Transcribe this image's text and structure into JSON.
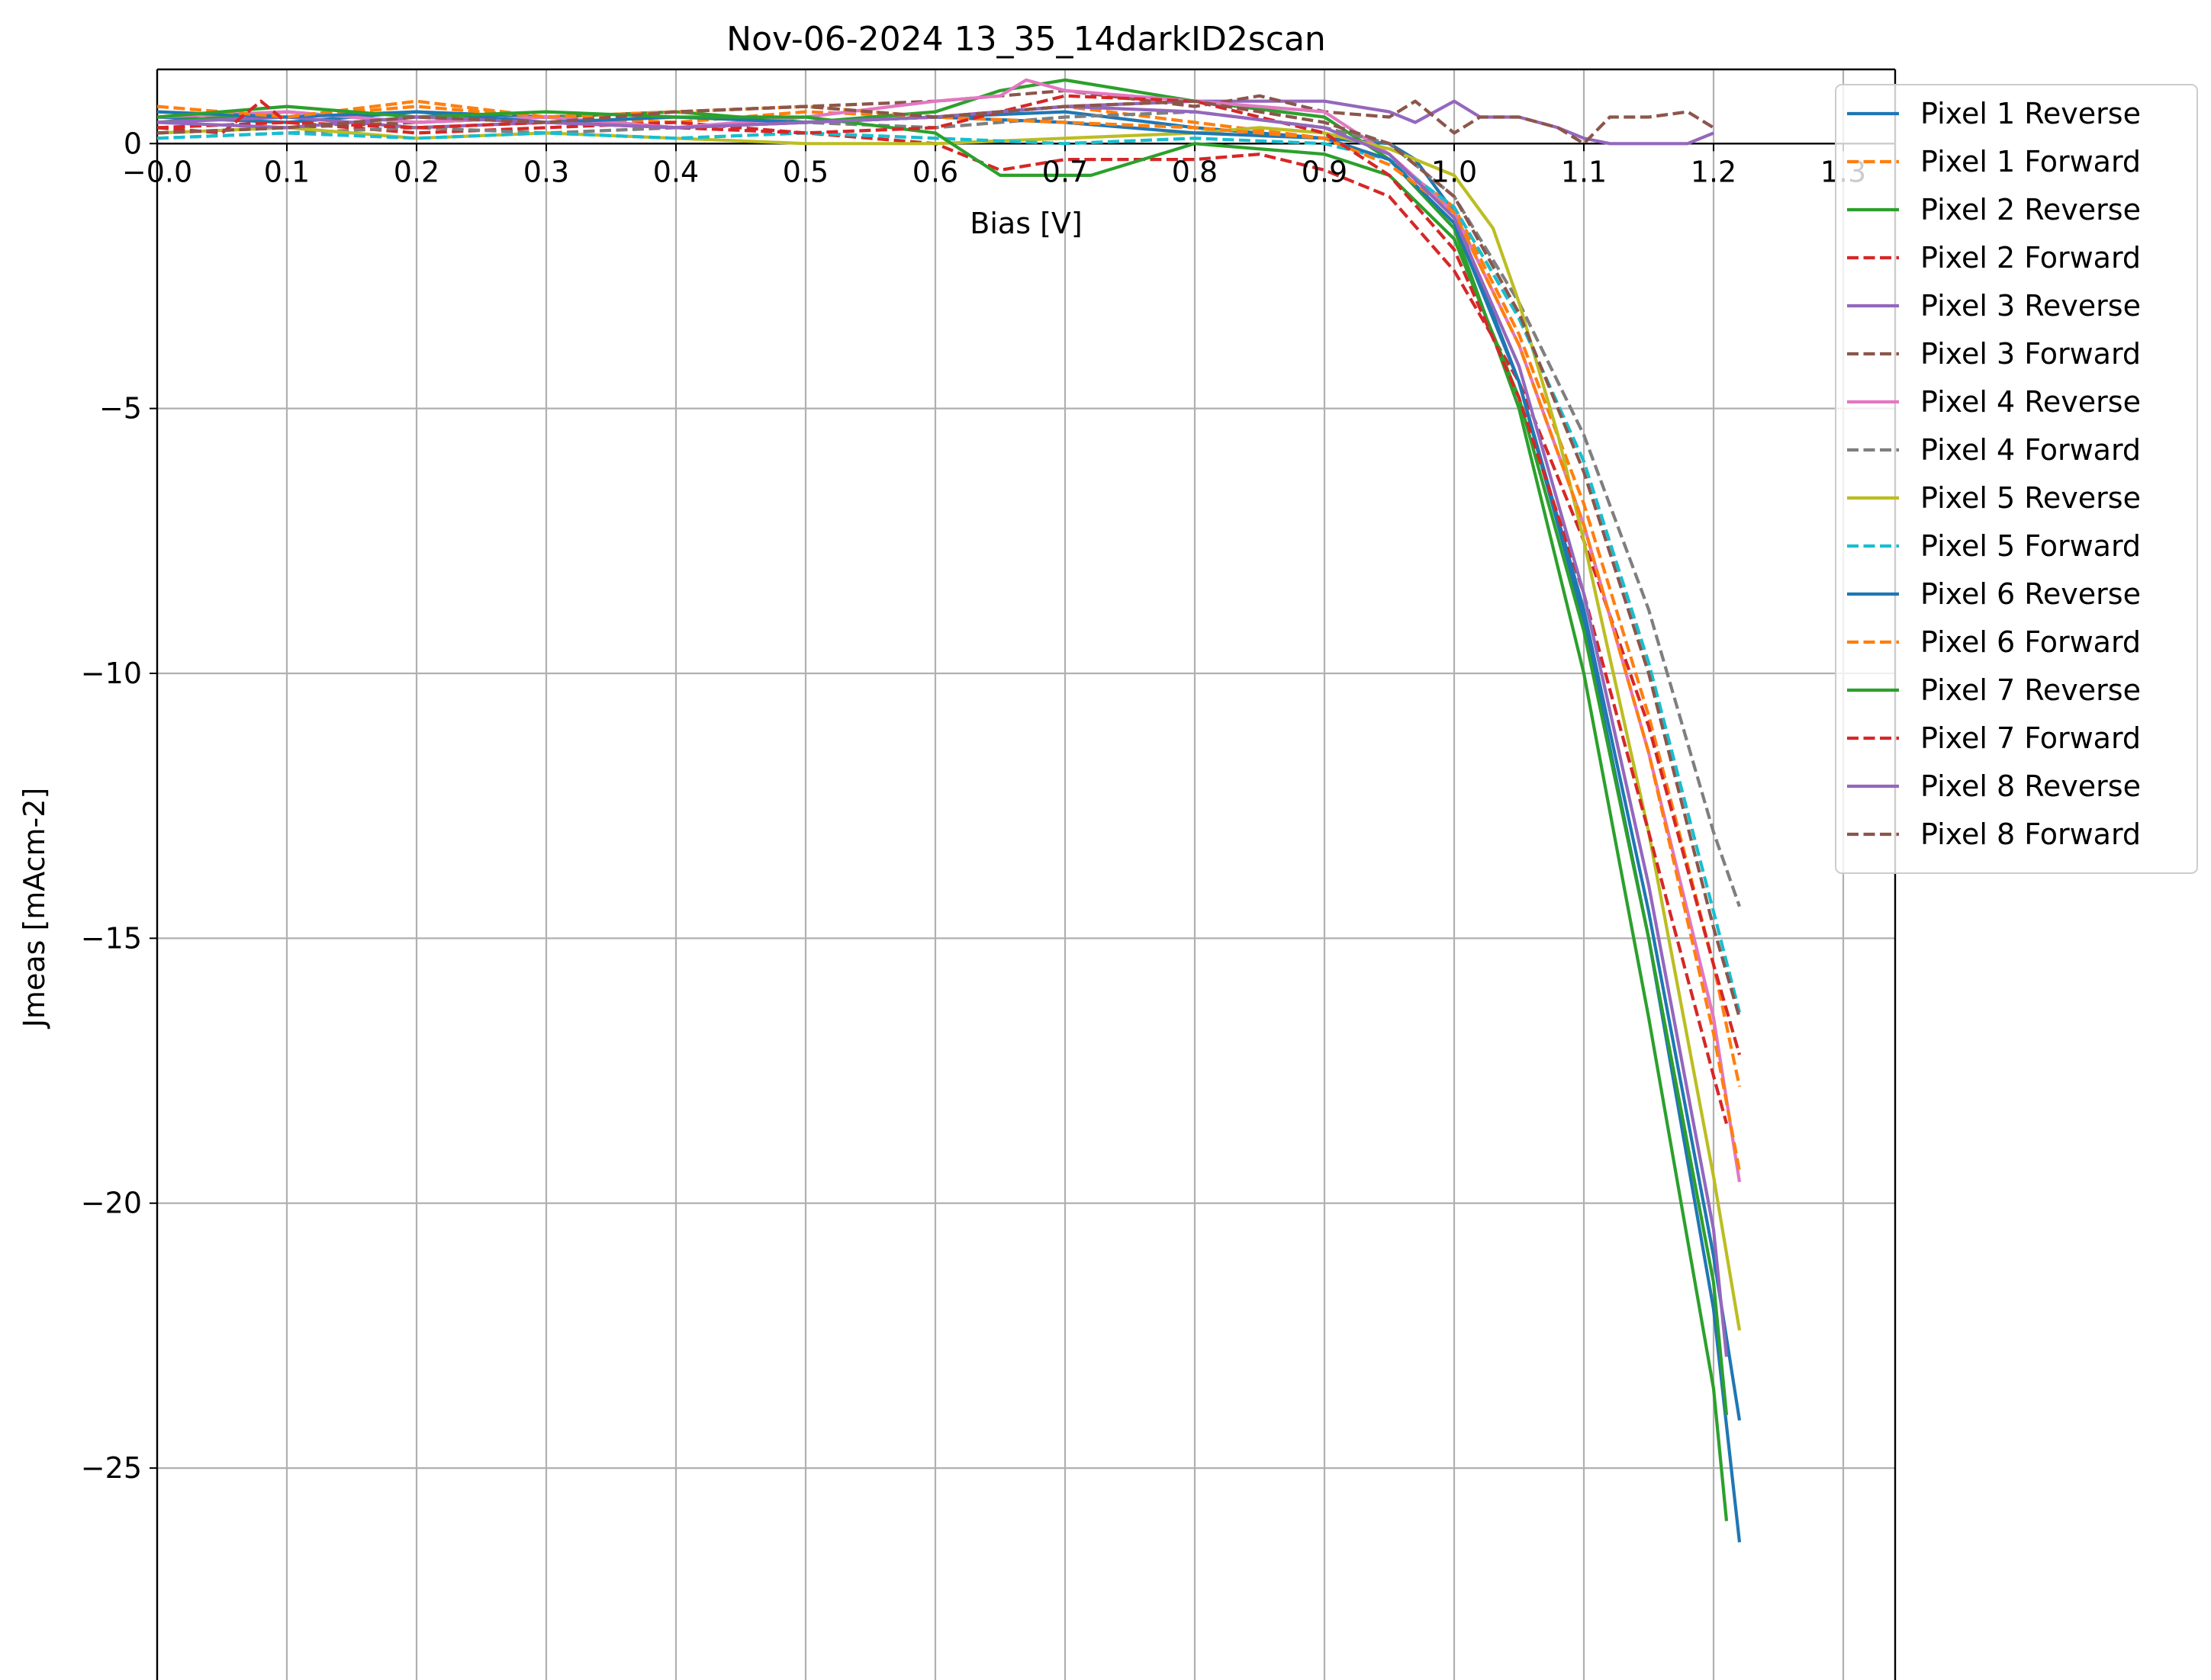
{
  "chart_data": {
    "type": "line",
    "title": "Nov-06-2024 13_35_14darkID2scan",
    "xlabel": "Bias [V]",
    "ylabel": "Jmeas [mAcm-2]",
    "xlim": [
      0.0,
      1.34
    ],
    "ylim": [
      -29.0,
      1.4
    ],
    "x_ticks": [
      0.0,
      0.1,
      0.2,
      0.3,
      0.4,
      0.5,
      0.6,
      0.7,
      0.8,
      0.9,
      1.0,
      1.1,
      1.2,
      1.3
    ],
    "x_tick_labels": [
      "−0.0",
      "0.1",
      "0.2",
      "0.3",
      "0.4",
      "0.5",
      "0.6",
      "0.7",
      "0.8",
      "0.9",
      "1.0",
      "1.1",
      "1.2",
      "1.3"
    ],
    "y_ticks": [
      0,
      -5,
      -10,
      -15,
      -20,
      -25
    ],
    "y_tick_labels": [
      "0",
      "−5",
      "−10",
      "−15",
      "−20",
      "−25"
    ],
    "grid": true,
    "legend_position": "top-right",
    "series": [
      {
        "name": "Pixel 1 Reverse",
        "color": "#1f77b4",
        "dash": false,
        "x": [
          0.0,
          0.1,
          0.2,
          0.3,
          0.4,
          0.5,
          0.6,
          0.7,
          0.8,
          0.9,
          0.95,
          0.97,
          1.0,
          1.05,
          1.1,
          1.15,
          1.2,
          1.22
        ],
        "y": [
          0.5,
          0.4,
          0.6,
          0.5,
          0.3,
          0.4,
          0.5,
          0.6,
          0.3,
          0.1,
          0.0,
          -0.3,
          -1.3,
          -4.5,
          -9.0,
          -15.0,
          -22.0,
          -26.4
        ]
      },
      {
        "name": "Pixel 1 Forward",
        "color": "#ff7f0e",
        "dash": true,
        "x": [
          0.0,
          0.1,
          0.2,
          0.3,
          0.4,
          0.5,
          0.6,
          0.7,
          0.8,
          0.9,
          0.95,
          1.0,
          1.05,
          1.1,
          1.15,
          1.2,
          1.22
        ],
        "y": [
          0.6,
          0.5,
          0.7,
          0.5,
          0.4,
          0.6,
          0.5,
          0.7,
          0.4,
          0.1,
          -0.3,
          -1.2,
          -3.6,
          -6.8,
          -10.8,
          -15.5,
          -17.8
        ]
      },
      {
        "name": "Pixel 2 Reverse",
        "color": "#2ca02c",
        "dash": false,
        "x": [
          0.0,
          0.1,
          0.2,
          0.3,
          0.4,
          0.5,
          0.6,
          0.65,
          0.7,
          0.75,
          0.8,
          0.9,
          0.95,
          1.0,
          1.05,
          1.1,
          1.15,
          1.2,
          1.21
        ],
        "y": [
          0.4,
          0.6,
          0.4,
          0.5,
          0.6,
          0.4,
          0.6,
          1.0,
          1.2,
          1.0,
          0.8,
          0.5,
          -0.3,
          -1.6,
          -5.0,
          -10.0,
          -16.5,
          -23.5,
          -26.0
        ]
      },
      {
        "name": "Pixel 2 Forward",
        "color": "#d62728",
        "dash": true,
        "x": [
          0.0,
          0.1,
          0.2,
          0.3,
          0.4,
          0.5,
          0.6,
          0.65,
          0.7,
          0.75,
          0.8,
          0.85,
          0.9,
          0.95,
          1.0,
          1.05,
          1.1,
          1.15,
          1.2,
          1.22
        ],
        "y": [
          0.3,
          0.4,
          0.2,
          0.3,
          0.4,
          0.2,
          0.0,
          -0.5,
          -0.3,
          -0.3,
          -0.3,
          -0.2,
          -0.5,
          -1.0,
          -2.4,
          -4.5,
          -7.5,
          -11.0,
          -15.5,
          -17.2
        ]
      },
      {
        "name": "Pixel 3 Reverse",
        "color": "#9467bd",
        "dash": false,
        "x": [
          0.0,
          0.1,
          0.2,
          0.3,
          0.4,
          0.5,
          0.6,
          0.7,
          0.8,
          0.9,
          0.95,
          0.97,
          1.0,
          1.02,
          1.05,
          1.08,
          1.1,
          1.12,
          1.15,
          1.18,
          1.2
        ],
        "y": [
          0.4,
          0.5,
          0.3,
          0.4,
          0.3,
          0.4,
          0.5,
          0.7,
          0.8,
          0.8,
          0.6,
          0.4,
          0.8,
          0.5,
          0.5,
          0.3,
          0.1,
          0.0,
          0.0,
          0.0,
          0.2
        ]
      },
      {
        "name": "Pixel 3 Forward",
        "color": "#8c564b",
        "dash": true,
        "x": [
          0.0,
          0.1,
          0.2,
          0.3,
          0.4,
          0.5,
          0.6,
          0.7,
          0.8,
          0.85,
          0.9,
          0.95,
          0.97,
          1.0,
          1.02,
          1.05,
          1.08,
          1.1,
          1.12,
          1.15,
          1.18,
          1.2
        ],
        "y": [
          0.2,
          0.3,
          0.4,
          0.5,
          0.6,
          0.7,
          0.8,
          1.0,
          0.7,
          0.9,
          0.6,
          0.5,
          0.8,
          0.2,
          0.5,
          0.5,
          0.3,
          0.0,
          0.5,
          0.5,
          0.6,
          0.3
        ]
      },
      {
        "name": "Pixel 4 Reverse",
        "color": "#e377c2",
        "dash": false,
        "x": [
          0.0,
          0.1,
          0.2,
          0.3,
          0.4,
          0.5,
          0.6,
          0.65,
          0.67,
          0.7,
          0.8,
          0.9,
          0.95,
          1.0,
          1.05,
          1.1,
          1.15,
          1.2,
          1.22
        ],
        "y": [
          0.5,
          0.6,
          0.4,
          0.5,
          0.3,
          0.5,
          0.8,
          0.9,
          1.2,
          1.0,
          0.8,
          0.6,
          -0.2,
          -1.3,
          -3.8,
          -7.2,
          -11.5,
          -16.5,
          -19.6
        ]
      },
      {
        "name": "Pixel 4 Forward",
        "color": "#7f7f7f",
        "dash": true,
        "x": [
          0.0,
          0.1,
          0.2,
          0.3,
          0.4,
          0.5,
          0.6,
          0.7,
          0.8,
          0.9,
          0.95,
          1.0,
          1.05,
          1.1,
          1.15,
          1.2,
          1.22
        ],
        "y": [
          0.1,
          0.2,
          0.3,
          0.2,
          0.3,
          0.4,
          0.3,
          0.5,
          0.6,
          0.3,
          0.0,
          -1.0,
          -3.0,
          -5.5,
          -8.8,
          -13.0,
          -14.4
        ]
      },
      {
        "name": "Pixel 5 Reverse",
        "color": "#bcbd22",
        "dash": false,
        "x": [
          0.0,
          0.1,
          0.2,
          0.3,
          0.4,
          0.5,
          0.6,
          0.7,
          0.8,
          0.85,
          0.9,
          0.95,
          1.0,
          1.03,
          1.05,
          1.08,
          1.1,
          1.15,
          1.2,
          1.22
        ],
        "y": [
          0.2,
          0.3,
          0.1,
          0.2,
          0.1,
          0.0,
          0.0,
          0.1,
          0.2,
          0.3,
          0.2,
          -0.1,
          -0.6,
          -1.6,
          -3.0,
          -5.5,
          -7.5,
          -13.0,
          -19.5,
          -22.4
        ]
      },
      {
        "name": "Pixel 5 Forward",
        "color": "#17becf",
        "dash": true,
        "x": [
          0.0,
          0.1,
          0.2,
          0.3,
          0.4,
          0.5,
          0.6,
          0.7,
          0.8,
          0.9,
          0.95,
          1.0,
          1.05,
          1.1,
          1.15,
          1.2,
          1.22
        ],
        "y": [
          0.1,
          0.2,
          0.1,
          0.2,
          0.1,
          0.2,
          0.1,
          0.0,
          0.1,
          0.0,
          -0.3,
          -1.2,
          -3.3,
          -6.0,
          -9.8,
          -14.5,
          -16.4
        ]
      },
      {
        "name": "Pixel 6 Reverse",
        "color": "#1f77b4",
        "dash": false,
        "x": [
          0.0,
          0.1,
          0.2,
          0.3,
          0.4,
          0.5,
          0.6,
          0.7,
          0.8,
          0.9,
          0.95,
          1.0,
          1.05,
          1.1,
          1.15,
          1.2,
          1.22
        ],
        "y": [
          0.6,
          0.5,
          0.6,
          0.4,
          0.5,
          0.4,
          0.5,
          0.4,
          0.2,
          0.1,
          -0.3,
          -1.5,
          -4.5,
          -8.8,
          -14.5,
          -21.0,
          -24.1
        ]
      },
      {
        "name": "Pixel 6 Forward",
        "color": "#ff7f0e",
        "dash": true,
        "x": [
          0.0,
          0.1,
          0.2,
          0.3,
          0.4,
          0.5,
          0.6,
          0.7,
          0.8,
          0.9,
          0.95,
          1.0,
          1.05,
          1.1,
          1.15,
          1.2,
          1.22
        ],
        "y": [
          0.7,
          0.5,
          0.8,
          0.5,
          0.6,
          0.7,
          0.5,
          0.4,
          0.3,
          0.1,
          -0.4,
          -1.3,
          -3.8,
          -7.2,
          -11.5,
          -16.8,
          -19.4
        ]
      },
      {
        "name": "Pixel 7 Reverse",
        "color": "#2ca02c",
        "dash": false,
        "x": [
          0.0,
          0.1,
          0.2,
          0.3,
          0.4,
          0.5,
          0.6,
          0.65,
          0.7,
          0.72,
          0.8,
          0.9,
          0.95,
          1.0,
          1.05,
          1.1,
          1.15,
          1.2,
          1.21
        ],
        "y": [
          0.5,
          0.7,
          0.5,
          0.6,
          0.5,
          0.5,
          0.2,
          -0.6,
          -0.6,
          -0.6,
          0.0,
          -0.2,
          -0.6,
          -1.8,
          -4.8,
          -9.2,
          -15.0,
          -21.5,
          -24.0
        ]
      },
      {
        "name": "Pixel 7 Forward",
        "color": "#d62728",
        "dash": true,
        "x": [
          0.0,
          0.05,
          0.08,
          0.1,
          0.2,
          0.3,
          0.4,
          0.5,
          0.6,
          0.7,
          0.8,
          0.9,
          0.95,
          1.0,
          1.05,
          1.1,
          1.15,
          1.2,
          1.21
        ],
        "y": [
          0.3,
          0.2,
          0.8,
          0.4,
          0.3,
          0.4,
          0.3,
          0.2,
          0.3,
          0.9,
          0.8,
          0.2,
          -0.6,
          -2.0,
          -4.8,
          -8.5,
          -13.0,
          -17.6,
          -18.5
        ]
      },
      {
        "name": "Pixel 8 Reverse",
        "color": "#9467bd",
        "dash": false,
        "x": [
          0.0,
          0.1,
          0.2,
          0.3,
          0.4,
          0.5,
          0.6,
          0.7,
          0.8,
          0.9,
          0.95,
          1.0,
          1.05,
          1.1,
          1.15,
          1.2,
          1.21
        ],
        "y": [
          0.4,
          0.3,
          0.5,
          0.4,
          0.3,
          0.4,
          0.5,
          0.7,
          0.6,
          0.3,
          -0.2,
          -1.4,
          -4.2,
          -8.5,
          -14.0,
          -20.5,
          -22.9
        ]
      },
      {
        "name": "Pixel 8 Forward",
        "color": "#8c564b",
        "dash": true,
        "x": [
          0.0,
          0.1,
          0.2,
          0.3,
          0.4,
          0.5,
          0.6,
          0.7,
          0.8,
          0.9,
          0.95,
          1.0,
          1.05,
          1.1,
          1.15,
          1.2,
          1.22
        ],
        "y": [
          0.2,
          0.3,
          0.5,
          0.4,
          0.6,
          0.7,
          0.5,
          0.7,
          0.8,
          0.4,
          0.0,
          -1.0,
          -3.2,
          -6.2,
          -10.0,
          -14.8,
          -16.5
        ]
      }
    ]
  }
}
